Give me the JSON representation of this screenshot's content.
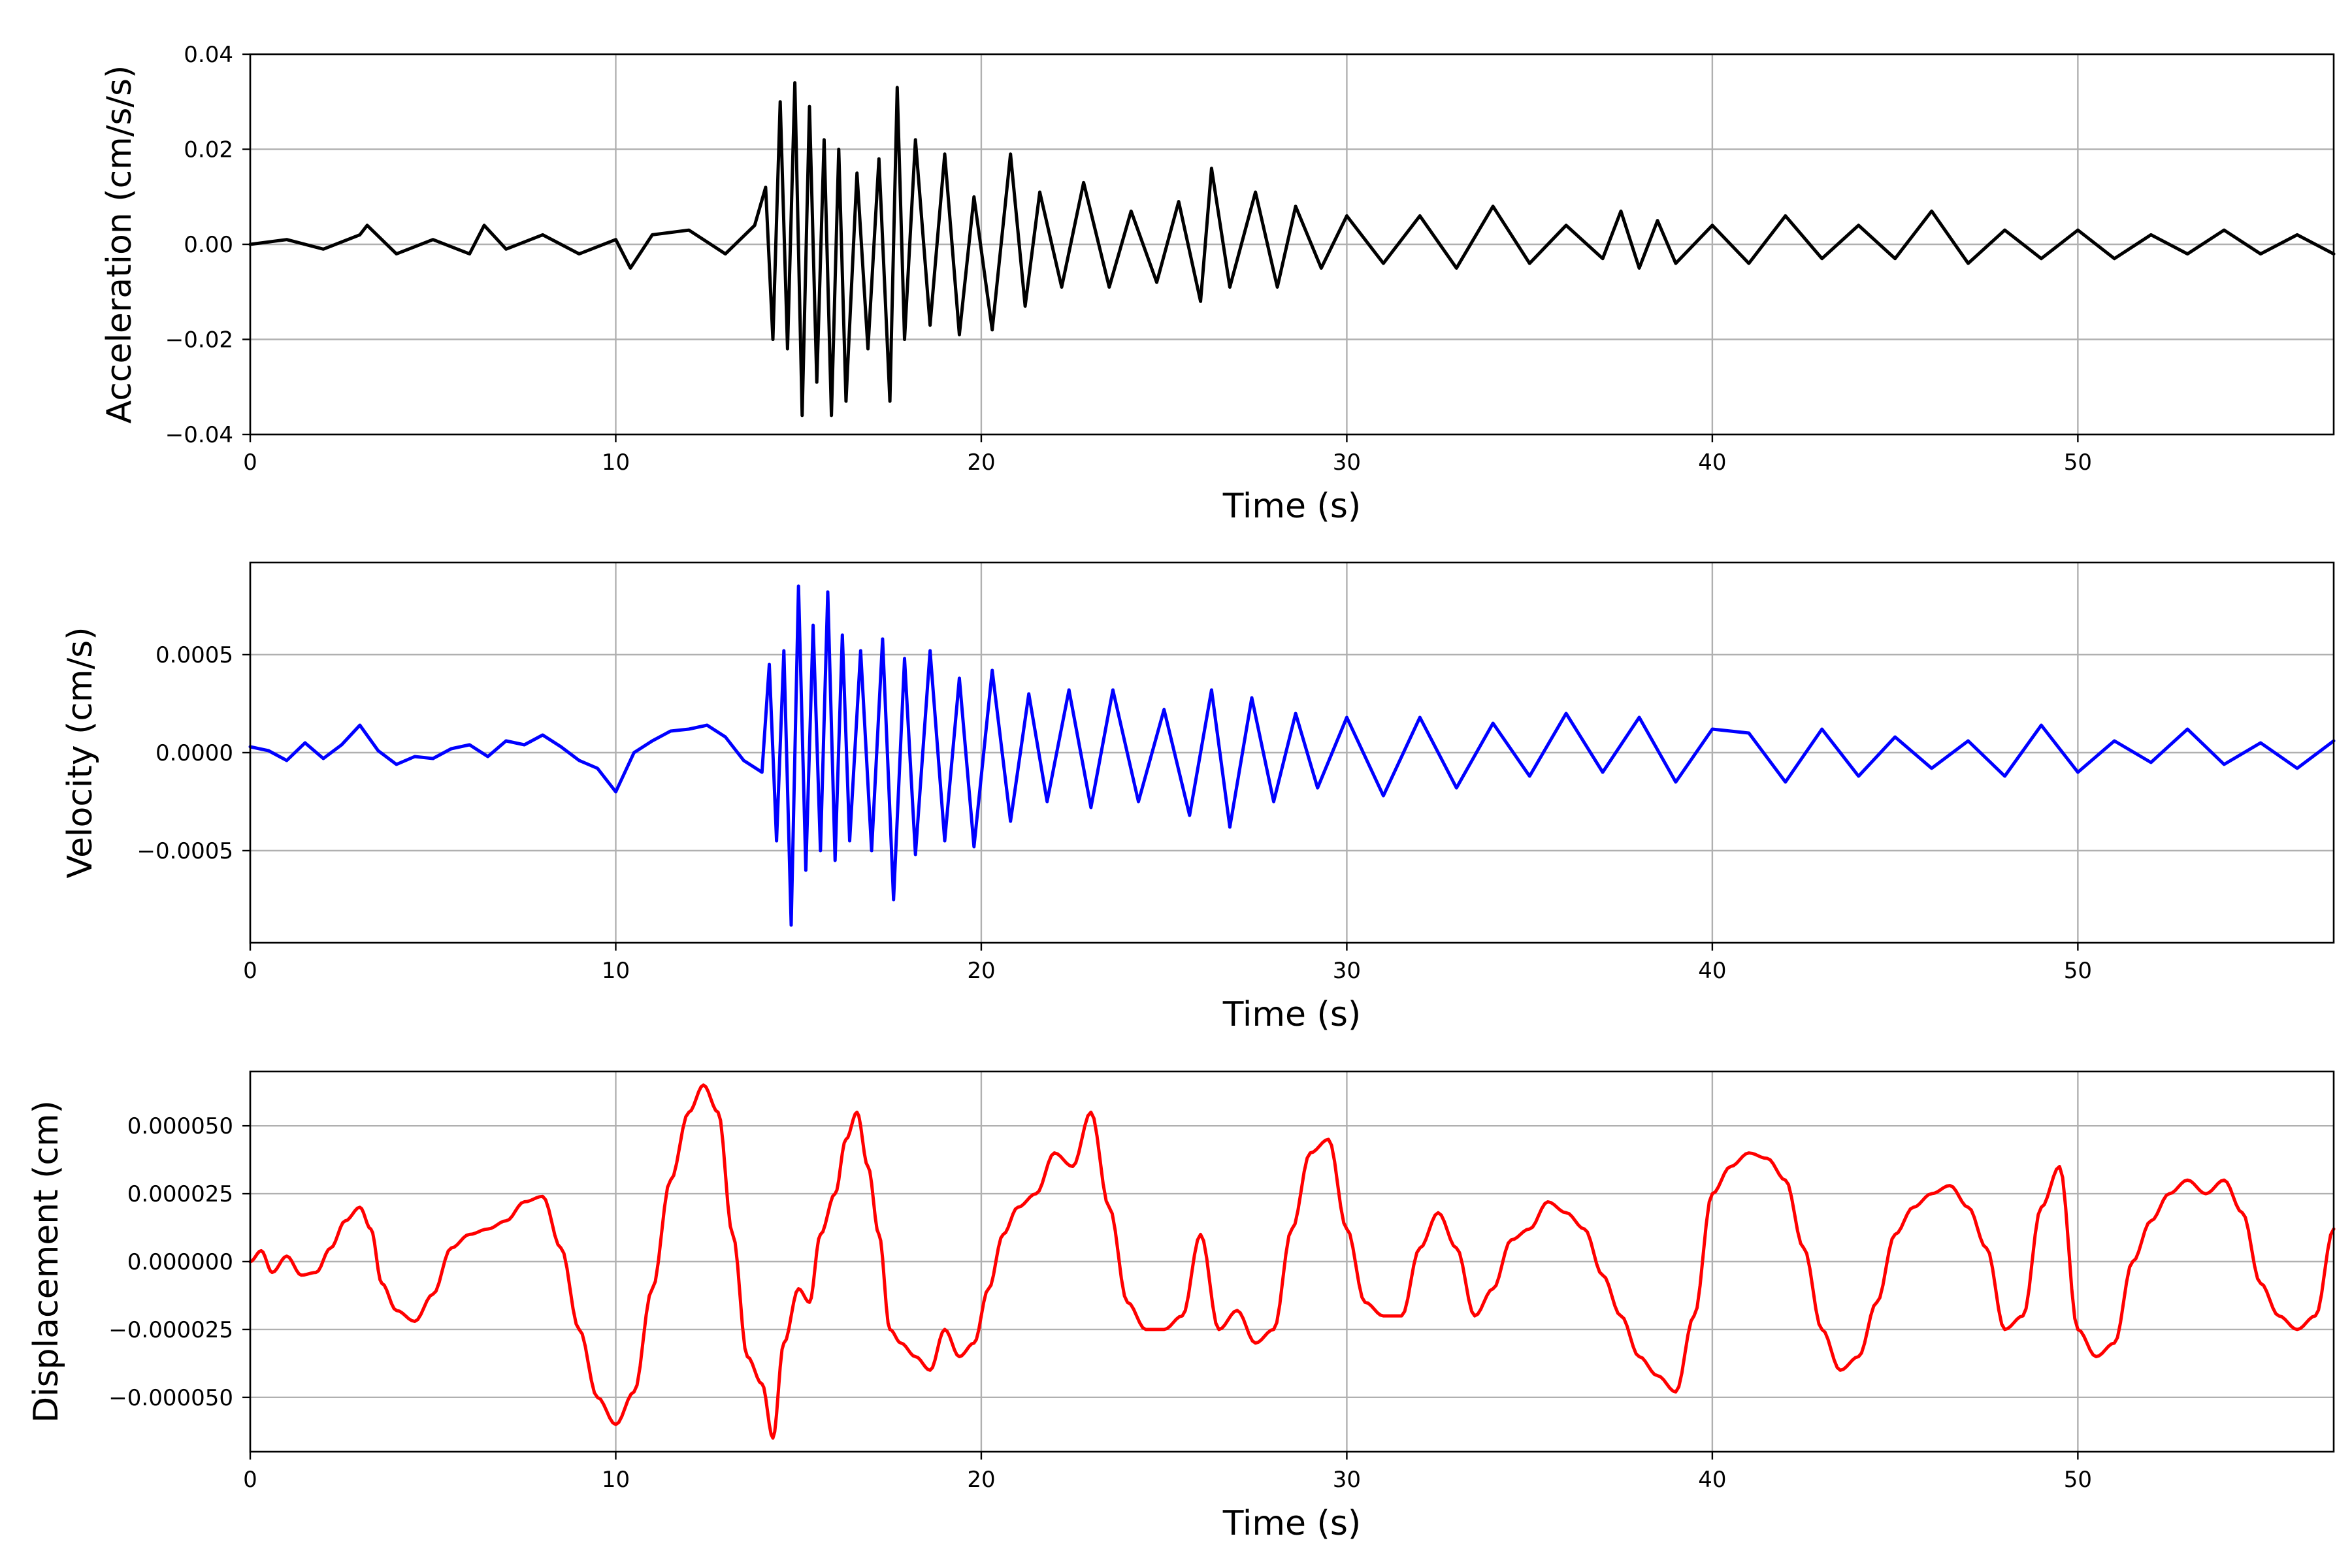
{
  "chart_data": [
    {
      "type": "line",
      "title": "",
      "xlabel": "Time (s)",
      "ylabel": "Acceleration (cm/s/s)",
      "xlim": [
        0,
        57
      ],
      "ylim": [
        -0.04,
        0.04
      ],
      "xticks": [
        0,
        10,
        20,
        30,
        40,
        50
      ],
      "xtick_labels": [
        "0",
        "10",
        "20",
        "30",
        "40",
        "50"
      ],
      "yticks": [
        -0.04,
        -0.02,
        0.0,
        0.02,
        0.04
      ],
      "ytick_labels": [
        "−0.04",
        "−0.02",
        "0.00",
        "0.02",
        "0.04"
      ],
      "grid": true,
      "color": "#000000",
      "series": [
        {
          "x": [
            0,
            1,
            2,
            3,
            3.2,
            4,
            5,
            6,
            6.4,
            7,
            8,
            9,
            10,
            10.4,
            11,
            12,
            13,
            13.8,
            14.1,
            14.3,
            14.5,
            14.7,
            14.9,
            15.1,
            15.3,
            15.5,
            15.7,
            15.9,
            16.1,
            16.3,
            16.6,
            16.9,
            17.2,
            17.5,
            17.7,
            17.9,
            18.2,
            18.6,
            19.0,
            19.4,
            19.8,
            20.3,
            20.8,
            21.2,
            21.6,
            22.2,
            22.8,
            23.5,
            24.1,
            24.8,
            25.4,
            26.0,
            26.3,
            26.8,
            27.5,
            28.1,
            28.6,
            29.3,
            30.0,
            31.0,
            32.0,
            33.0,
            34.0,
            35.0,
            36.0,
            37.0,
            37.5,
            38.0,
            38.5,
            39.0,
            40.0,
            41.0,
            42.0,
            43.0,
            44.0,
            45.0,
            46.0,
            47.0,
            48.0,
            49.0,
            50.0,
            51.0,
            52.0,
            53.0,
            54.0,
            55.0,
            56.0,
            57.0
          ],
          "y": [
            0.0,
            0.001,
            -0.001,
            0.002,
            0.004,
            -0.002,
            0.001,
            -0.002,
            0.004,
            -0.001,
            0.002,
            -0.002,
            0.001,
            -0.005,
            0.002,
            0.003,
            -0.002,
            0.004,
            0.012,
            -0.02,
            0.03,
            -0.022,
            0.034,
            -0.036,
            0.029,
            -0.029,
            0.022,
            -0.036,
            0.02,
            -0.033,
            0.015,
            -0.022,
            0.018,
            -0.033,
            0.033,
            -0.02,
            0.022,
            -0.017,
            0.019,
            -0.019,
            0.01,
            -0.018,
            0.019,
            -0.013,
            0.011,
            -0.009,
            0.013,
            -0.009,
            0.007,
            -0.008,
            0.009,
            -0.012,
            0.016,
            -0.009,
            0.011,
            -0.009,
            0.008,
            -0.005,
            0.006,
            -0.004,
            0.006,
            -0.005,
            0.008,
            -0.004,
            0.004,
            -0.003,
            0.007,
            -0.005,
            0.005,
            -0.004,
            0.004,
            -0.004,
            0.006,
            -0.003,
            0.004,
            -0.003,
            0.007,
            -0.004,
            0.003,
            -0.003,
            0.003,
            -0.003,
            0.002,
            -0.002,
            0.003,
            -0.002,
            0.002,
            -0.002
          ]
        }
      ]
    },
    {
      "type": "line",
      "title": "",
      "xlabel": "Time (s)",
      "ylabel": "Velocity (cm/s)",
      "xlim": [
        0,
        57
      ],
      "ylim": [
        -0.00097,
        0.00097
      ],
      "xticks": [
        0,
        10,
        20,
        30,
        40,
        50
      ],
      "xtick_labels": [
        "0",
        "10",
        "20",
        "30",
        "40",
        "50"
      ],
      "yticks": [
        -0.0005,
        0.0,
        0.0005
      ],
      "ytick_labels": [
        "−0.0005",
        "0.0000",
        "0.0005"
      ],
      "grid": true,
      "color": "#0000ff",
      "series": [
        {
          "x": [
            0,
            0.5,
            1,
            1.5,
            2,
            2.5,
            3.0,
            3.5,
            4,
            4.5,
            5,
            5.5,
            6.0,
            6.5,
            7,
            7.5,
            8,
            8.5,
            9,
            9.5,
            10.0,
            10.5,
            11,
            11.5,
            12,
            12.5,
            13,
            13.5,
            14.0,
            14.2,
            14.4,
            14.6,
            14.8,
            15.0,
            15.2,
            15.4,
            15.6,
            15.8,
            16.0,
            16.2,
            16.4,
            16.7,
            17.0,
            17.3,
            17.6,
            17.9,
            18.2,
            18.6,
            19.0,
            19.4,
            19.8,
            20.3,
            20.8,
            21.3,
            21.8,
            22.4,
            23.0,
            23.6,
            24.3,
            25.0,
            25.7,
            26.3,
            26.8,
            27.4,
            28.0,
            28.6,
            29.2,
            30.0,
            31.0,
            32.0,
            33.0,
            34.0,
            35.0,
            36.0,
            37.0,
            38.0,
            39.0,
            40.0,
            41.0,
            42.0,
            43.0,
            44.0,
            45.0,
            46.0,
            47.0,
            48.0,
            49.0,
            50.0,
            51.0,
            52.0,
            53.0,
            54.0,
            55.0,
            56.0,
            57.0
          ],
          "y": [
            3e-05,
            1e-05,
            -4e-05,
            5e-05,
            -3e-05,
            4e-05,
            0.00014,
            1e-05,
            -6e-05,
            -2e-05,
            -3e-05,
            2e-05,
            4e-05,
            -2e-05,
            6e-05,
            4e-05,
            9e-05,
            3e-05,
            -4e-05,
            -8e-05,
            -0.0002,
            0.0,
            6e-05,
            0.00011,
            0.00012,
            0.00014,
            8e-05,
            -4e-05,
            -0.0001,
            0.00045,
            -0.00045,
            0.00052,
            -0.00088,
            0.00085,
            -0.0006,
            0.00065,
            -0.0005,
            0.00082,
            -0.00055,
            0.0006,
            -0.00045,
            0.00052,
            -0.0005,
            0.00058,
            -0.00075,
            0.00048,
            -0.00052,
            0.00052,
            -0.00045,
            0.00038,
            -0.00048,
            0.00042,
            -0.00035,
            0.0003,
            -0.00025,
            0.00032,
            -0.00028,
            0.00032,
            -0.00025,
            0.00022,
            -0.00032,
            0.00032,
            -0.00038,
            0.00028,
            -0.00025,
            0.0002,
            -0.00018,
            0.00018,
            -0.00022,
            0.00018,
            -0.00018,
            0.00015,
            -0.00012,
            0.0002,
            -0.0001,
            0.00018,
            -0.00015,
            0.00012,
            0.0001,
            -0.00015,
            0.00012,
            -0.00012,
            8e-05,
            -8e-05,
            6e-05,
            -0.00012,
            0.00014,
            -0.0001,
            6e-05,
            -5e-05,
            0.00012,
            -6e-05,
            5e-05,
            -8e-05,
            6e-05
          ]
        }
      ]
    },
    {
      "type": "line",
      "title": "",
      "xlabel": "Time (s)",
      "ylabel": "Displacement (cm)",
      "xlim": [
        0,
        57
      ],
      "ylim": [
        -7e-05,
        7e-05
      ],
      "xticks": [
        0,
        10,
        20,
        30,
        40,
        50
      ],
      "xtick_labels": [
        "0",
        "10",
        "20",
        "30",
        "40",
        "50"
      ],
      "yticks": [
        -5e-05,
        -2.5e-05,
        0.0,
        2.5e-05,
        5e-05
      ],
      "ytick_labels": [
        "−0.000050",
        "−0.000025",
        "0.000000",
        "0.000025",
        "0.000050"
      ],
      "grid": true,
      "color": "#ff0000",
      "series": [
        {
          "x": [
            0,
            0.3,
            0.6,
            1.0,
            1.4,
            1.8,
            2.2,
            2.6,
            3.0,
            3.3,
            3.6,
            4.0,
            4.5,
            5.0,
            5.5,
            6.0,
            6.5,
            7.0,
            7.5,
            8.0,
            8.5,
            9.0,
            9.5,
            10.0,
            10.5,
            11.0,
            11.5,
            12.0,
            12.4,
            12.8,
            13.2,
            13.6,
            14.0,
            14.3,
            14.6,
            15.0,
            15.3,
            15.6,
            16.0,
            16.3,
            16.6,
            16.9,
            17.2,
            17.5,
            17.8,
            18.2,
            18.6,
            19.0,
            19.4,
            19.8,
            20.2,
            20.6,
            21.0,
            21.5,
            22.0,
            22.5,
            23.0,
            23.5,
            24.0,
            24.5,
            25.0,
            25.5,
            26.0,
            26.5,
            27.0,
            27.5,
            28.0,
            28.5,
            29.0,
            29.5,
            30.0,
            30.5,
            31.0,
            31.5,
            32.0,
            32.5,
            33.0,
            33.5,
            34.0,
            34.5,
            35.0,
            35.5,
            36.0,
            36.5,
            37.0,
            37.5,
            38.0,
            38.5,
            39.0,
            39.5,
            40.0,
            40.5,
            41.0,
            41.5,
            42.0,
            42.5,
            43.0,
            43.5,
            44.0,
            44.5,
            45.0,
            45.5,
            46.0,
            46.5,
            47.0,
            47.5,
            48.0,
            48.5,
            49.0,
            49.5,
            50.0,
            50.5,
            51.0,
            51.5,
            52.0,
            52.5,
            53.0,
            53.5,
            54.0,
            54.5,
            55.0,
            55.5,
            56.0,
            56.5,
            57.0
          ],
          "y": [
            0.0,
            4e-06,
            -4e-06,
            2e-06,
            -5e-06,
            -4e-06,
            5e-06,
            1.5e-05,
            2e-05,
            1.2e-05,
            -8e-06,
            -1.8e-05,
            -2.2e-05,
            -1.2e-05,
            5e-06,
            1e-05,
            1.2e-05,
            1.5e-05,
            2.2e-05,
            2.4e-05,
            5e-06,
            -2.5e-05,
            -5e-05,
            -6e-05,
            -4.8e-05,
            -1e-05,
            3e-05,
            5.5e-05,
            6.5e-05,
            5.5e-05,
            1e-05,
            -3.5e-05,
            -4.5e-05,
            -6.5e-05,
            -3e-05,
            -1e-05,
            -1.5e-05,
            1e-05,
            2.5e-05,
            4.5e-05,
            5.5e-05,
            3.5e-05,
            1e-05,
            -2.5e-05,
            -3e-05,
            -3.5e-05,
            -4e-05,
            -2.5e-05,
            -3.5e-05,
            -3e-05,
            -1e-05,
            1e-05,
            2e-05,
            2.5e-05,
            4e-05,
            3.5e-05,
            5.5e-05,
            2e-05,
            -1.5e-05,
            -2.5e-05,
            -2.5e-05,
            -2e-05,
            1e-05,
            -2.5e-05,
            -1.8e-05,
            -3e-05,
            -2.5e-05,
            1.2e-05,
            4e-05,
            4.5e-05,
            1.2e-05,
            -1.5e-05,
            -2e-05,
            -2e-05,
            5e-06,
            1.8e-05,
            5e-06,
            -2e-05,
            -1e-05,
            8e-06,
            1.2e-05,
            2.2e-05,
            1.8e-05,
            1.2e-05,
            -5e-06,
            -2e-05,
            -3.5e-05,
            -4.2e-05,
            -4.8e-05,
            -2e-05,
            2.5e-05,
            3.5e-05,
            4e-05,
            3.8e-05,
            3e-05,
            5e-06,
            -2.5e-05,
            -4e-05,
            -3.5e-05,
            -1.5e-05,
            1e-05,
            2e-05,
            2.5e-05,
            2.8e-05,
            2e-05,
            5e-06,
            -2.5e-05,
            -2e-05,
            2e-05,
            3.5e-05,
            -2.5e-05,
            -3.5e-05,
            -3e-05,
            0.0,
            1.5e-05,
            2.5e-05,
            3e-05,
            2.5e-05,
            3e-05,
            1.8e-05,
            -8e-06,
            -2e-05,
            -2.5e-05,
            -2e-05,
            1.2e-05
          ]
        }
      ]
    }
  ]
}
